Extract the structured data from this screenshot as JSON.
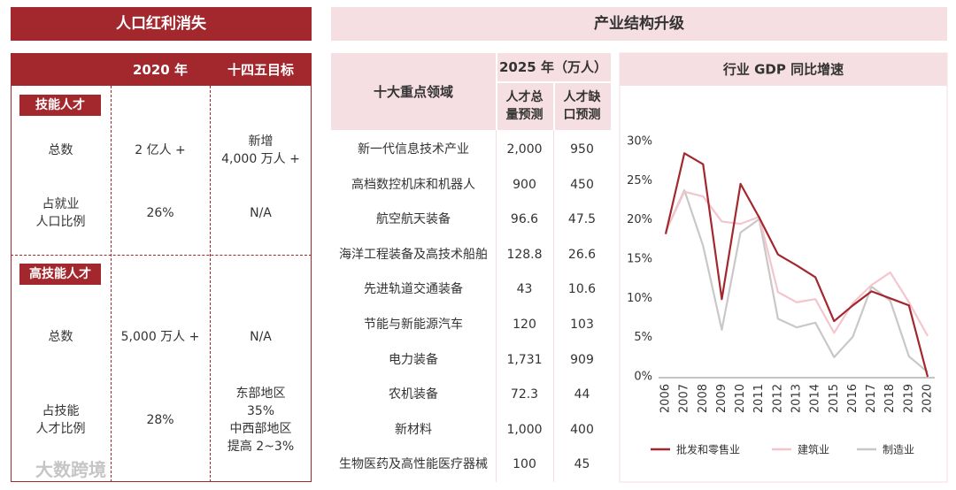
{
  "left": {
    "title": "人口红利消失",
    "columns": [
      "2020 年",
      "十四五目标"
    ],
    "sections": [
      {
        "badge": "技能人才",
        "rows": [
          {
            "label": [
              "总数"
            ],
            "value": [
              "2 亿人 +"
            ],
            "target": [
              "新增",
              "4,000 万人 +"
            ]
          },
          {
            "label": [
              "占就业",
              "人口比例"
            ],
            "value": [
              "26%"
            ],
            "target": [
              "N/A"
            ]
          }
        ]
      },
      {
        "badge": "高技能人才",
        "rows": [
          {
            "label": [
              "总数"
            ],
            "value": [
              "5,000 万人 +"
            ],
            "target": [
              "N/A"
            ]
          },
          {
            "label": [
              "占技能",
              "人才比例"
            ],
            "value": [
              "28%"
            ],
            "target": [
              "东部地区",
              "35%",
              "中西部地区",
              "提高 2~3%"
            ]
          }
        ]
      }
    ]
  },
  "middle": {
    "title": "产业结构升级",
    "table": {
      "field_header": "十大重点领域",
      "group_header": "2025 年（万人）",
      "columns": [
        [
          "人才总",
          "量预测"
        ],
        [
          "人才缺",
          "口预测"
        ]
      ],
      "rows": [
        [
          "新一代信息技术产业",
          "2,000",
          "950"
        ],
        [
          "高档数控机床和机器人",
          "900",
          "450"
        ],
        [
          "航空航天装备",
          "96.6",
          "47.5"
        ],
        [
          "海洋工程装备及高技术船舶",
          "128.8",
          "26.6"
        ],
        [
          "先进轨道交通装备",
          "43",
          "10.6"
        ],
        [
          "节能与新能源汽车",
          "120",
          "103"
        ],
        [
          "电力装备",
          "1,731",
          "909"
        ],
        [
          "农机装备",
          "72.3",
          "44"
        ],
        [
          "新材料",
          "1,000",
          "400"
        ],
        [
          "生物医药及高性能医疗器械",
          "100",
          "45"
        ]
      ]
    }
  },
  "watermark": "大数跨境",
  "chart_data": {
    "type": "line",
    "title": "行业 GDP 同比增速",
    "categories": [
      "2006",
      "2007",
      "2008",
      "2009",
      "2010",
      "2011",
      "2012",
      "2013",
      "2014",
      "2015",
      "2016",
      "2017",
      "2018",
      "2019",
      "2020"
    ],
    "series": [
      {
        "name": "批发和零售业",
        "color": "#a3282d",
        "values": [
          18.2,
          28.5,
          27.1,
          9.9,
          24.6,
          20.3,
          15.6,
          14.2,
          12.7,
          7.1,
          9.1,
          10.9,
          10.0,
          9.1,
          0
        ]
      },
      {
        "name": "建筑业",
        "color": "#f3c6cd",
        "values": [
          18.5,
          23.6,
          23.0,
          19.8,
          19.5,
          20.4,
          10.8,
          9.5,
          9.9,
          5.6,
          9.4,
          11.7,
          13.3,
          9.5,
          5.2
        ]
      },
      {
        "name": "制造业",
        "color": "#c8c8c8",
        "values": [
          18.5,
          23.8,
          16.7,
          6.0,
          18.4,
          20.1,
          7.4,
          6.3,
          6.9,
          2.5,
          5.1,
          11.5,
          9.7,
          2.6,
          0.6
        ]
      }
    ],
    "ylim": [
      0,
      30
    ],
    "yticks": [
      {
        "value": 0,
        "label": "0%"
      },
      {
        "value": 5,
        "label": "5%"
      },
      {
        "value": 10,
        "label": "10%"
      },
      {
        "value": 15,
        "label": "15%"
      },
      {
        "value": 20,
        "label": "20%"
      },
      {
        "value": 25,
        "label": "25%"
      },
      {
        "value": 30,
        "label": "30%"
      }
    ],
    "grid": false,
    "legend": "bottom"
  }
}
